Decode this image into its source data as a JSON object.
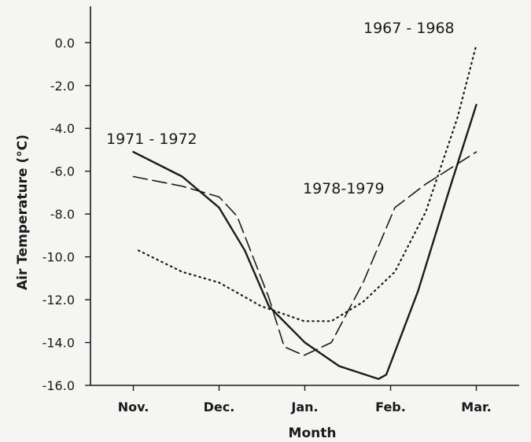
{
  "chart_data": {
    "type": "line",
    "x_label": "Month",
    "y_label": "Air Temperature (°C)",
    "xlim": [
      -0.5,
      4.5
    ],
    "xticks": [
      {
        "value": 0,
        "label": "Nov."
      },
      {
        "value": 1,
        "label": "Dec."
      },
      {
        "value": 2,
        "label": "Jan."
      },
      {
        "value": 3,
        "label": "Feb."
      },
      {
        "value": 4,
        "label": "Mar."
      }
    ],
    "ylim": [
      -16,
      1.7
    ],
    "yticks": [
      {
        "value": 0,
        "label": "0.0"
      },
      {
        "value": -2,
        "label": "-2.0"
      },
      {
        "value": -4,
        "label": "-4.0"
      },
      {
        "value": -6,
        "label": "-6.0"
      },
      {
        "value": -8,
        "label": "-8.0"
      },
      {
        "value": -10,
        "label": "-10.0"
      },
      {
        "value": -12,
        "label": "-12.0"
      },
      {
        "value": -14,
        "label": "-14.0"
      },
      {
        "value": -16,
        "label": "-16.0"
      }
    ],
    "series": [
      {
        "name": "1971 - 1972",
        "color": "#1a1a1a",
        "style": "solid",
        "x": [
          0,
          0.57,
          1,
          1.3,
          1.58,
          2,
          2.4,
          2.86,
          2.95,
          3.32,
          3.69,
          4
        ],
        "values": [
          -5.1,
          -6.25,
          -7.7,
          -9.7,
          -12.3,
          -14.0,
          -15.1,
          -15.7,
          -15.5,
          -11.6,
          -6.8,
          -2.9
        ]
      },
      {
        "name": "1978-1979",
        "color": "#1a1a1a",
        "style": "dashed",
        "x": [
          0,
          0.57,
          1,
          1.21,
          1.58,
          1.76,
          1.99,
          2.31,
          2.68,
          3.05,
          3.41,
          4
        ],
        "values": [
          -6.25,
          -6.7,
          -7.2,
          -8.1,
          -11.9,
          -14.2,
          -14.6,
          -14.0,
          -11.2,
          -7.7,
          -6.6,
          -5.1
        ]
      },
      {
        "name": "1967 - 1968",
        "color": "#1a1a1a",
        "style": "dotted",
        "x": [
          0.06,
          0.57,
          1,
          1.49,
          1.99,
          2.31,
          2.68,
          3.05,
          3.41,
          3.78,
          4
        ],
        "values": [
          -9.7,
          -10.7,
          -11.2,
          -12.3,
          -13.0,
          -13.0,
          -12.1,
          -10.7,
          -7.9,
          -3.5,
          -0.1
        ]
      }
    ]
  }
}
